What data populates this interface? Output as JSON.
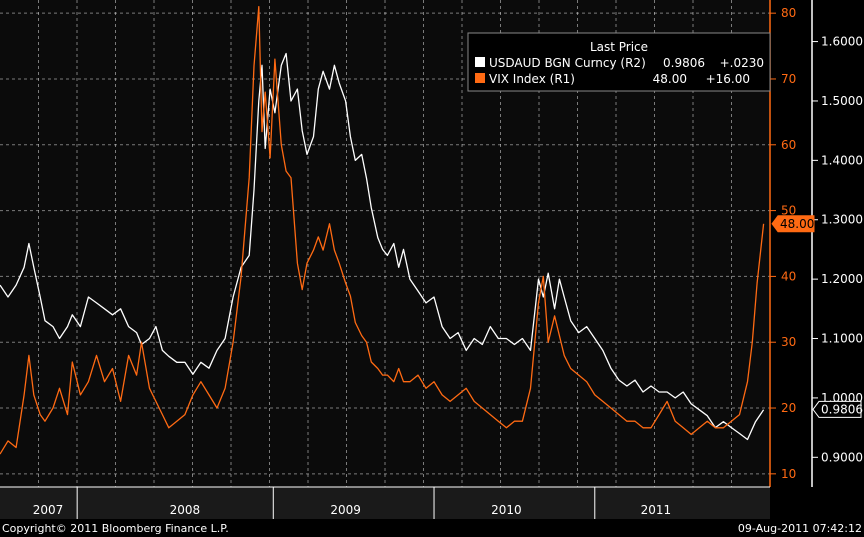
{
  "chart_data": {
    "type": "line",
    "legend_placement": "top-right",
    "grid": true,
    "legend": {
      "title": "Last Price",
      "entries": [
        {
          "label": "USDAUD BGN Curncy  (R2)",
          "value": "0.9806",
          "change": "+.0230",
          "color": "#ffffff"
        },
        {
          "label": "VIX Index  (R1)",
          "value": "48.00",
          "change": "+16.00",
          "color": "#ff6a13"
        }
      ]
    },
    "x_axis": {
      "range": [
        2006.85,
        2011.64
      ],
      "period_labels": [
        {
          "label": "2007",
          "at": 2007.33
        },
        {
          "label": "2008",
          "at": 2008.0
        },
        {
          "label": "2009",
          "at": 2009.0
        },
        {
          "label": "2010",
          "at": 2010.0
        },
        {
          "label": "2011",
          "at": 2010.93
        }
      ],
      "separators": [
        2007.33,
        2008.55,
        2009.55,
        2010.55
      ]
    },
    "axis_r1": {
      "ylim": [
        8,
        82
      ],
      "ticks": [
        "10",
        "20",
        "30",
        "40",
        "50",
        "60",
        "70",
        "80"
      ],
      "color": "#ff6a13"
    },
    "axis_r2": {
      "ylim": [
        0.85,
        1.67
      ],
      "ticks": [
        "0.9000",
        "1.0000",
        "1.1000",
        "1.2000",
        "1.3000",
        "1.4000",
        "1.5000",
        "1.6000"
      ],
      "color": "#ffffff"
    },
    "last_value_tags": [
      {
        "axis": "r1",
        "value": 48,
        "label": "48.00",
        "color": "#ff6a13"
      },
      {
        "axis": "r2",
        "value": 0.9806,
        "label": "0.9806",
        "color": "#ffffff"
      }
    ],
    "series": [
      {
        "name": "USDAUD BGN Curncy",
        "axis": "r2",
        "color": "#ffffff",
        "points": [
          [
            2006.85,
            1.19
          ],
          [
            2006.9,
            1.17
          ],
          [
            2006.95,
            1.19
          ],
          [
            2007.0,
            1.22
          ],
          [
            2007.03,
            1.26
          ],
          [
            2007.06,
            1.22
          ],
          [
            2007.1,
            1.17
          ],
          [
            2007.13,
            1.13
          ],
          [
            2007.18,
            1.12
          ],
          [
            2007.22,
            1.1
          ],
          [
            2007.27,
            1.12
          ],
          [
            2007.3,
            1.14
          ],
          [
            2007.35,
            1.12
          ],
          [
            2007.4,
            1.17
          ],
          [
            2007.45,
            1.16
          ],
          [
            2007.5,
            1.15
          ],
          [
            2007.55,
            1.14
          ],
          [
            2007.6,
            1.15
          ],
          [
            2007.65,
            1.12
          ],
          [
            2007.7,
            1.11
          ],
          [
            2007.73,
            1.09
          ],
          [
            2007.78,
            1.1
          ],
          [
            2007.82,
            1.12
          ],
          [
            2007.86,
            1.08
          ],
          [
            2007.9,
            1.07
          ],
          [
            2007.95,
            1.06
          ],
          [
            2008.0,
            1.06
          ],
          [
            2008.05,
            1.04
          ],
          [
            2008.1,
            1.06
          ],
          [
            2008.15,
            1.05
          ],
          [
            2008.2,
            1.08
          ],
          [
            2008.25,
            1.1
          ],
          [
            2008.3,
            1.17
          ],
          [
            2008.35,
            1.22
          ],
          [
            2008.4,
            1.24
          ],
          [
            2008.43,
            1.35
          ],
          [
            2008.46,
            1.5
          ],
          [
            2008.48,
            1.56
          ],
          [
            2008.5,
            1.42
          ],
          [
            2008.53,
            1.52
          ],
          [
            2008.56,
            1.48
          ],
          [
            2008.6,
            1.56
          ],
          [
            2008.63,
            1.58
          ],
          [
            2008.66,
            1.5
          ],
          [
            2008.7,
            1.52
          ],
          [
            2008.73,
            1.45
          ],
          [
            2008.76,
            1.41
          ],
          [
            2008.8,
            1.44
          ],
          [
            2008.83,
            1.52
          ],
          [
            2008.86,
            1.55
          ],
          [
            2008.9,
            1.52
          ],
          [
            2008.93,
            1.56
          ],
          [
            2008.96,
            1.53
          ],
          [
            2009.0,
            1.5
          ],
          [
            2009.03,
            1.44
          ],
          [
            2009.06,
            1.4
          ],
          [
            2009.1,
            1.41
          ],
          [
            2009.13,
            1.37
          ],
          [
            2009.16,
            1.32
          ],
          [
            2009.2,
            1.27
          ],
          [
            2009.23,
            1.25
          ],
          [
            2009.26,
            1.24
          ],
          [
            2009.3,
            1.26
          ],
          [
            2009.33,
            1.22
          ],
          [
            2009.36,
            1.25
          ],
          [
            2009.4,
            1.2
          ],
          [
            2009.45,
            1.18
          ],
          [
            2009.5,
            1.16
          ],
          [
            2009.55,
            1.17
          ],
          [
            2009.6,
            1.12
          ],
          [
            2009.65,
            1.1
          ],
          [
            2009.7,
            1.11
          ],
          [
            2009.75,
            1.08
          ],
          [
            2009.8,
            1.1
          ],
          [
            2009.85,
            1.09
          ],
          [
            2009.9,
            1.12
          ],
          [
            2009.95,
            1.1
          ],
          [
            2010.0,
            1.1
          ],
          [
            2010.05,
            1.09
          ],
          [
            2010.1,
            1.1
          ],
          [
            2010.15,
            1.08
          ],
          [
            2010.2,
            1.2
          ],
          [
            2010.23,
            1.17
          ],
          [
            2010.26,
            1.21
          ],
          [
            2010.3,
            1.15
          ],
          [
            2010.33,
            1.2
          ],
          [
            2010.36,
            1.17
          ],
          [
            2010.4,
            1.13
          ],
          [
            2010.45,
            1.11
          ],
          [
            2010.5,
            1.12
          ],
          [
            2010.55,
            1.1
          ],
          [
            2010.6,
            1.08
          ],
          [
            2010.65,
            1.05
          ],
          [
            2010.7,
            1.03
          ],
          [
            2010.75,
            1.02
          ],
          [
            2010.8,
            1.03
          ],
          [
            2010.85,
            1.01
          ],
          [
            2010.9,
            1.02
          ],
          [
            2010.95,
            1.01
          ],
          [
            2011.0,
            1.01
          ],
          [
            2011.05,
            1.0
          ],
          [
            2011.1,
            1.01
          ],
          [
            2011.15,
            0.99
          ],
          [
            2011.2,
            0.98
          ],
          [
            2011.25,
            0.97
          ],
          [
            2011.3,
            0.95
          ],
          [
            2011.35,
            0.96
          ],
          [
            2011.4,
            0.95
          ],
          [
            2011.45,
            0.94
          ],
          [
            2011.5,
            0.93
          ],
          [
            2011.55,
            0.96
          ],
          [
            2011.6,
            0.98
          ]
        ]
      },
      {
        "name": "VIX Index",
        "axis": "r1",
        "color": "#ff6a13",
        "points": [
          [
            2006.85,
            13
          ],
          [
            2006.9,
            15
          ],
          [
            2006.95,
            14
          ],
          [
            2007.0,
            22
          ],
          [
            2007.03,
            28
          ],
          [
            2007.06,
            22
          ],
          [
            2007.1,
            19
          ],
          [
            2007.13,
            18
          ],
          [
            2007.18,
            20
          ],
          [
            2007.22,
            23
          ],
          [
            2007.27,
            19
          ],
          [
            2007.3,
            27
          ],
          [
            2007.35,
            22
          ],
          [
            2007.4,
            24
          ],
          [
            2007.45,
            28
          ],
          [
            2007.5,
            24
          ],
          [
            2007.55,
            26
          ],
          [
            2007.6,
            21
          ],
          [
            2007.65,
            28
          ],
          [
            2007.7,
            25
          ],
          [
            2007.73,
            30
          ],
          [
            2007.78,
            23
          ],
          [
            2007.82,
            21
          ],
          [
            2007.86,
            19
          ],
          [
            2007.9,
            17
          ],
          [
            2007.95,
            18
          ],
          [
            2008.0,
            19
          ],
          [
            2008.05,
            22
          ],
          [
            2008.1,
            24
          ],
          [
            2008.15,
            22
          ],
          [
            2008.2,
            20
          ],
          [
            2008.25,
            23
          ],
          [
            2008.3,
            30
          ],
          [
            2008.35,
            40
          ],
          [
            2008.4,
            55
          ],
          [
            2008.43,
            72
          ],
          [
            2008.46,
            81
          ],
          [
            2008.48,
            62
          ],
          [
            2008.5,
            68
          ],
          [
            2008.53,
            58
          ],
          [
            2008.56,
            73
          ],
          [
            2008.6,
            60
          ],
          [
            2008.63,
            56
          ],
          [
            2008.66,
            55
          ],
          [
            2008.7,
            42
          ],
          [
            2008.73,
            38
          ],
          [
            2008.76,
            42
          ],
          [
            2008.8,
            44
          ],
          [
            2008.83,
            46
          ],
          [
            2008.86,
            44
          ],
          [
            2008.9,
            48
          ],
          [
            2008.93,
            44
          ],
          [
            2008.96,
            42
          ],
          [
            2009.0,
            39
          ],
          [
            2009.03,
            37
          ],
          [
            2009.06,
            33
          ],
          [
            2009.1,
            31
          ],
          [
            2009.13,
            30
          ],
          [
            2009.16,
            27
          ],
          [
            2009.2,
            26
          ],
          [
            2009.23,
            25
          ],
          [
            2009.26,
            25
          ],
          [
            2009.3,
            24
          ],
          [
            2009.33,
            26
          ],
          [
            2009.36,
            24
          ],
          [
            2009.4,
            24
          ],
          [
            2009.45,
            25
          ],
          [
            2009.5,
            23
          ],
          [
            2009.55,
            24
          ],
          [
            2009.6,
            22
          ],
          [
            2009.65,
            21
          ],
          [
            2009.7,
            22
          ],
          [
            2009.75,
            23
          ],
          [
            2009.8,
            21
          ],
          [
            2009.85,
            20
          ],
          [
            2009.9,
            19
          ],
          [
            2009.95,
            18
          ],
          [
            2010.0,
            17
          ],
          [
            2010.05,
            18
          ],
          [
            2010.1,
            18
          ],
          [
            2010.15,
            23
          ],
          [
            2010.2,
            36
          ],
          [
            2010.23,
            40
          ],
          [
            2010.26,
            30
          ],
          [
            2010.3,
            34
          ],
          [
            2010.33,
            31
          ],
          [
            2010.36,
            28
          ],
          [
            2010.4,
            26
          ],
          [
            2010.45,
            25
          ],
          [
            2010.5,
            24
          ],
          [
            2010.55,
            22
          ],
          [
            2010.6,
            21
          ],
          [
            2010.65,
            20
          ],
          [
            2010.7,
            19
          ],
          [
            2010.75,
            18
          ],
          [
            2010.8,
            18
          ],
          [
            2010.85,
            17
          ],
          [
            2010.9,
            17
          ],
          [
            2010.95,
            19
          ],
          [
            2011.0,
            21
          ],
          [
            2011.05,
            18
          ],
          [
            2011.1,
            17
          ],
          [
            2011.15,
            16
          ],
          [
            2011.2,
            17
          ],
          [
            2011.25,
            18
          ],
          [
            2011.3,
            17
          ],
          [
            2011.35,
            17
          ],
          [
            2011.4,
            18
          ],
          [
            2011.45,
            19
          ],
          [
            2011.5,
            24
          ],
          [
            2011.53,
            30
          ],
          [
            2011.56,
            39
          ],
          [
            2011.6,
            48
          ]
        ]
      }
    ]
  },
  "footer": {
    "copyright": "Copyright© 2011 Bloomberg Finance L.P.",
    "timestamp": "09-Aug-2011 07:42:12"
  }
}
